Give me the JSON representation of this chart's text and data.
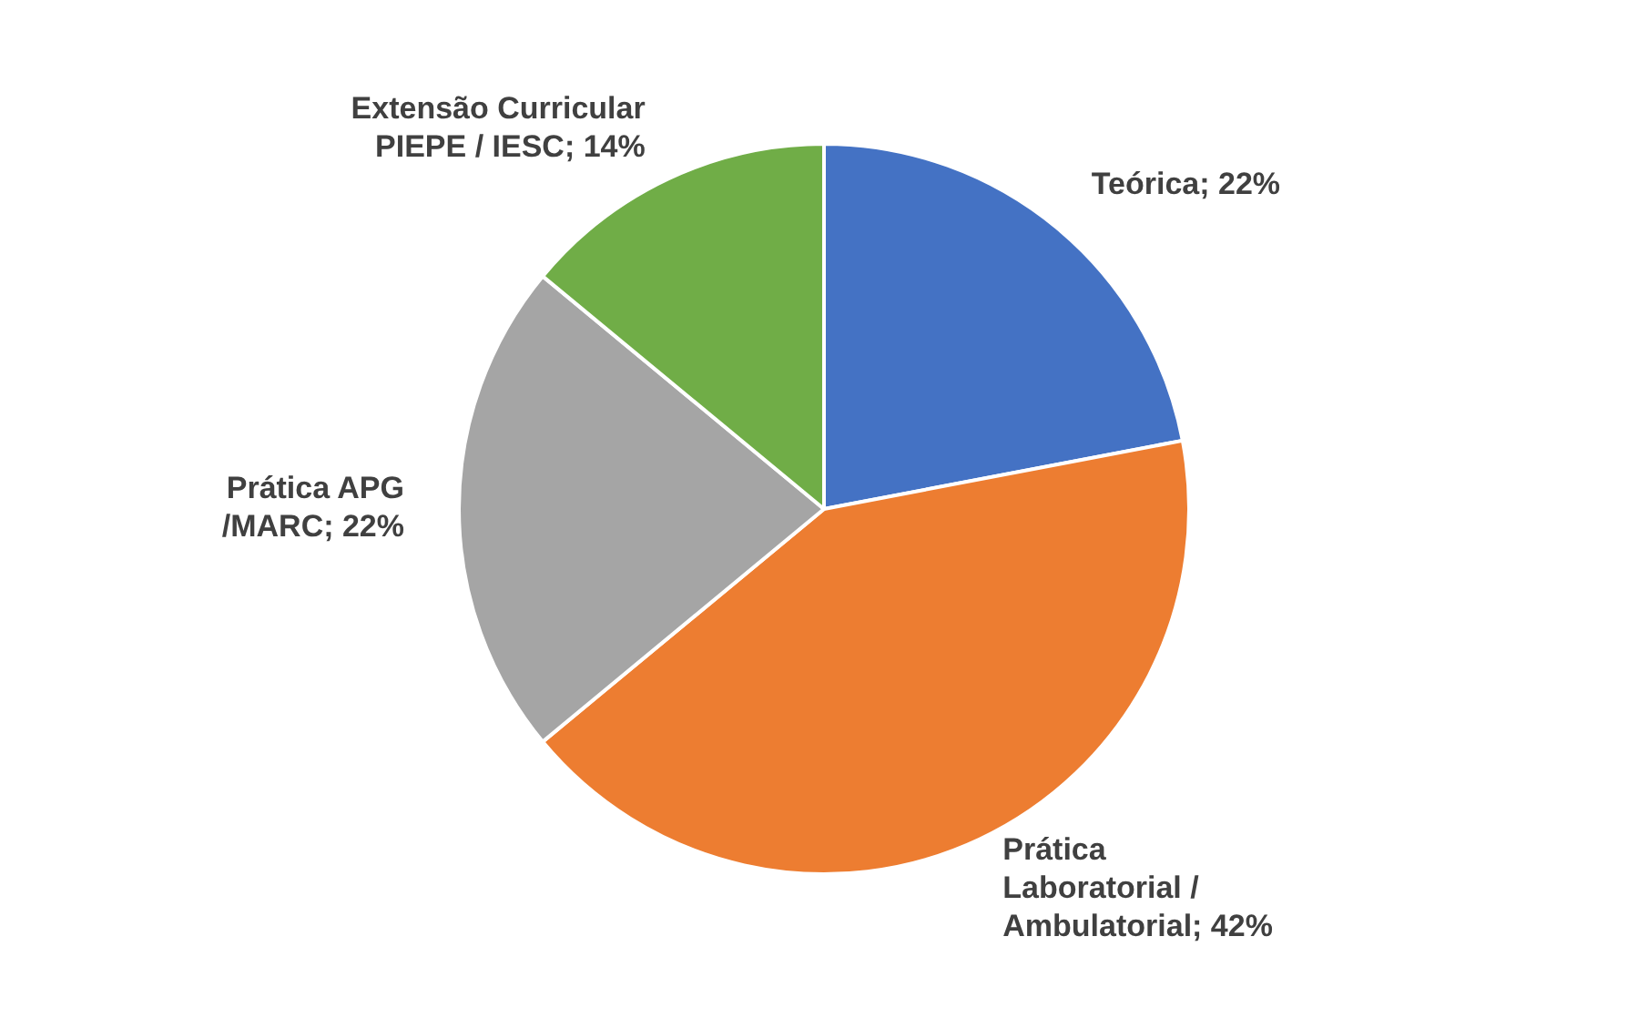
{
  "chart_data": {
    "type": "pie",
    "categories": [
      "Teórica",
      "Prática Laboratorial / Ambulatorial",
      "Prática APG /MARC",
      "Extensão Curricular PIEPE / IESC"
    ],
    "values": [
      22,
      42,
      22,
      14
    ],
    "value_labels": [
      "22%",
      "42%",
      "22%",
      "14%"
    ],
    "colors": [
      "#4472c4",
      "#ed7d31",
      "#a5a5a5",
      "#70ad47"
    ],
    "legend": false
  }
}
